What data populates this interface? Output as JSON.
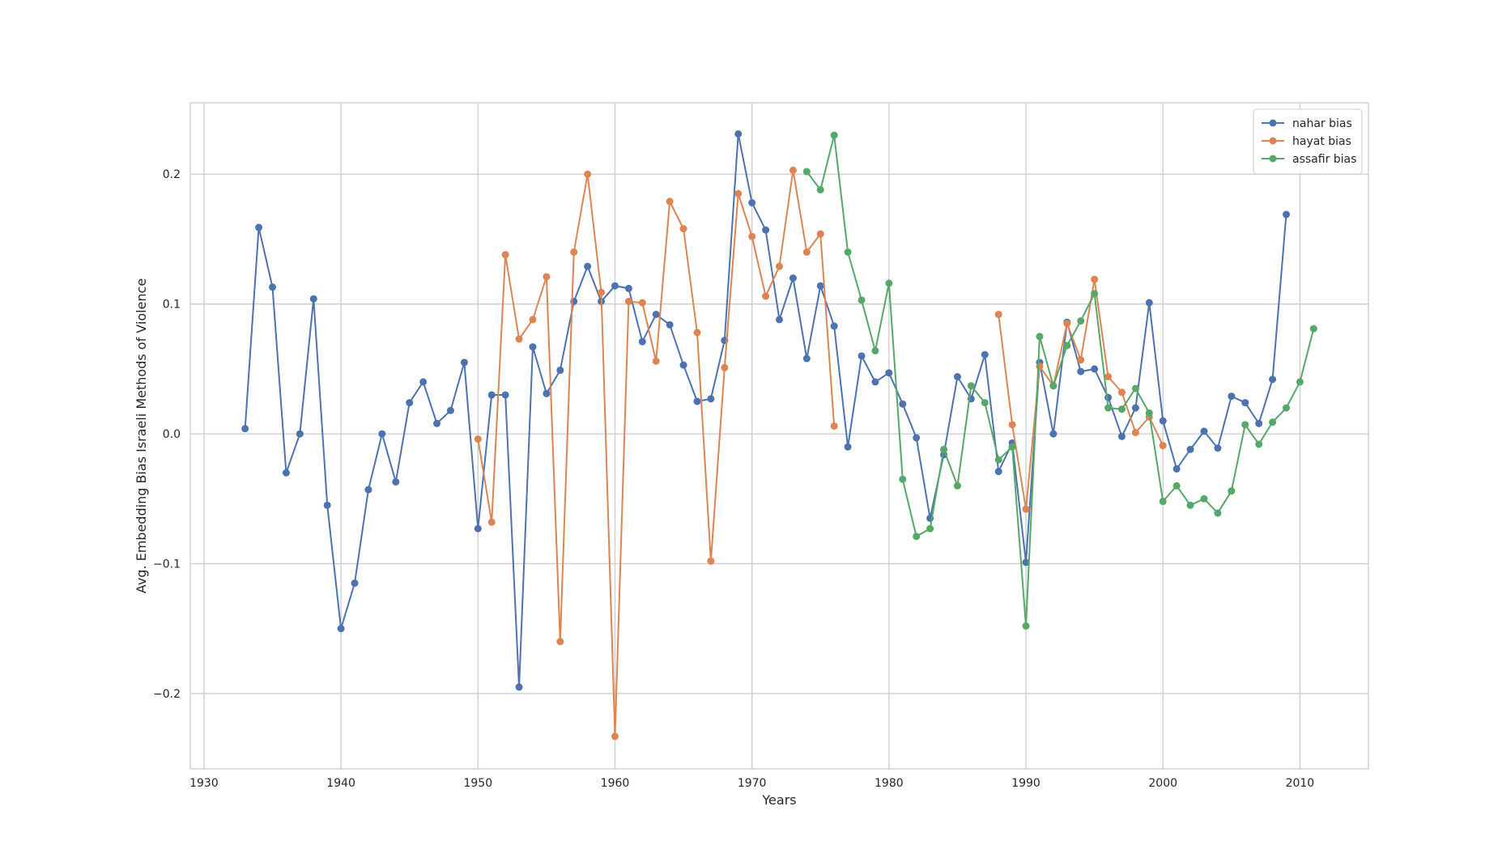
{
  "chart_data": {
    "type": "line",
    "xlabel": "Years",
    "ylabel": "Avg. Embedding Bias Israeli Methods of Violence",
    "xlim": [
      1929,
      2015
    ],
    "ylim": [
      -0.258,
      0.255
    ],
    "xticks": [
      1930,
      1940,
      1950,
      1960,
      1970,
      1980,
      1990,
      2000,
      2010
    ],
    "yticks": [
      -0.2,
      -0.1,
      0.0,
      0.1,
      0.2
    ],
    "ytick_labels": [
      "−0.2",
      "−0.1",
      "0.0",
      "0.1",
      "0.2"
    ],
    "grid": true,
    "legend_position": "top-right",
    "series": [
      {
        "name": "nahar bias",
        "color": "#4C72B0",
        "x": [
          1933,
          1934,
          1935,
          1936,
          1937,
          1938,
          1939,
          1940,
          1941,
          1942,
          1943,
          1944,
          1945,
          1946,
          1947,
          1948,
          1949,
          1950,
          1951,
          1952,
          1953,
          1954,
          1955,
          1956,
          1957,
          1958,
          1959,
          1960,
          1961,
          1962,
          1963,
          1964,
          1965,
          1966,
          1967,
          1968,
          1969,
          1970,
          1971,
          1972,
          1973,
          1974,
          1975,
          1976,
          1977,
          1978,
          1979,
          1980,
          1981,
          1982,
          1983,
          1984,
          1985,
          1986,
          1987,
          1988,
          1989,
          1990,
          1991,
          1992,
          1993,
          1994,
          1995,
          1996,
          1997,
          1998,
          1999,
          2000,
          2001,
          2002,
          2003,
          2004,
          2005,
          2006,
          2007,
          2008,
          2009
        ],
        "y": [
          0.004,
          0.159,
          0.113,
          -0.03,
          0.0,
          0.104,
          -0.055,
          -0.15,
          -0.115,
          -0.043,
          0.0,
          -0.037,
          0.024,
          0.04,
          0.008,
          0.018,
          0.055,
          -0.073,
          0.03,
          0.03,
          -0.195,
          0.067,
          0.031,
          0.049,
          0.102,
          0.129,
          0.102,
          0.114,
          0.112,
          0.071,
          0.092,
          0.084,
          0.053,
          0.025,
          0.027,
          0.072,
          0.231,
          0.178,
          0.157,
          0.088,
          0.12,
          0.058,
          0.114,
          0.083,
          -0.01,
          0.06,
          0.04,
          0.047,
          0.023,
          -0.003,
          -0.065,
          -0.016,
          0.044,
          0.027,
          0.061,
          -0.029,
          -0.007,
          -0.099,
          0.055,
          0.0,
          0.086,
          0.048,
          0.05,
          0.028,
          -0.002,
          0.02,
          0.101,
          0.01,
          -0.027,
          -0.012,
          0.002,
          -0.011,
          0.029,
          0.024,
          0.008,
          0.042,
          0.169
        ]
      },
      {
        "name": "hayat bias",
        "color": "#DD8452",
        "x": [
          1950,
          1951,
          1952,
          1953,
          1954,
          1955,
          1956,
          1957,
          1958,
          1959,
          1960,
          1961,
          1962,
          1963,
          1964,
          1965,
          1966,
          1967,
          1968,
          1969,
          1970,
          1971,
          1972,
          1973,
          1974,
          1975,
          1976,
          null,
          1988,
          1989,
          1990,
          1991,
          1992,
          1993,
          1994,
          1995,
          1996,
          1997,
          1998,
          1999,
          2000
        ],
        "y": [
          -0.004,
          -0.068,
          0.138,
          0.073,
          0.088,
          0.121,
          -0.16,
          0.14,
          0.2,
          0.109,
          -0.233,
          0.102,
          0.101,
          0.056,
          0.179,
          0.158,
          0.078,
          -0.098,
          0.051,
          0.185,
          0.152,
          0.106,
          0.129,
          0.203,
          0.14,
          0.154,
          0.006,
          null,
          0.092,
          0.007,
          -0.058,
          0.052,
          0.037,
          0.085,
          0.057,
          0.119,
          0.044,
          0.032,
          0.001,
          0.013,
          -0.009
        ]
      },
      {
        "name": "assafir bias",
        "color": "#55A868",
        "x": [
          1974,
          1975,
          1976,
          1977,
          1978,
          1979,
          1980,
          1981,
          1982,
          1983,
          1984,
          1985,
          1986,
          1987,
          1988,
          1989,
          1990,
          1991,
          1992,
          1993,
          1994,
          1995,
          1996,
          1997,
          1998,
          1999,
          2000,
          2001,
          2002,
          2003,
          2004,
          2005,
          2006,
          2007,
          2008,
          2009,
          2010,
          2011
        ],
        "y": [
          0.202,
          0.188,
          0.23,
          0.14,
          0.103,
          0.064,
          0.116,
          -0.035,
          -0.079,
          -0.073,
          -0.012,
          -0.04,
          0.037,
          0.024,
          -0.02,
          -0.01,
          -0.148,
          0.075,
          0.037,
          0.068,
          0.087,
          0.108,
          0.02,
          0.019,
          0.035,
          0.016,
          -0.052,
          -0.04,
          -0.055,
          -0.05,
          -0.061,
          -0.044,
          0.007,
          -0.008,
          0.009,
          0.02,
          0.04,
          0.081
        ]
      }
    ]
  }
}
